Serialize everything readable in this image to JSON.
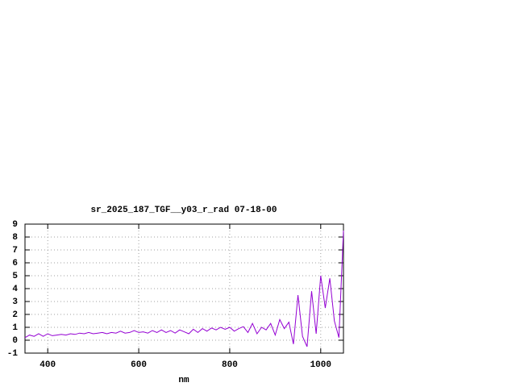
{
  "chart_data": {
    "type": "line",
    "title": "sr_2025_187_TGF__y03_r_rad 07-18-00",
    "x_label": "nm",
    "x": [
      350,
      360,
      370,
      380,
      390,
      400,
      410,
      420,
      430,
      440,
      450,
      460,
      470,
      480,
      490,
      500,
      510,
      520,
      530,
      540,
      550,
      560,
      570,
      580,
      590,
      600,
      610,
      620,
      630,
      640,
      650,
      660,
      670,
      680,
      690,
      700,
      710,
      720,
      730,
      740,
      750,
      760,
      770,
      780,
      790,
      800,
      810,
      820,
      830,
      840,
      850,
      860,
      870,
      880,
      890,
      900,
      910,
      920,
      930,
      940,
      950,
      960,
      970,
      980,
      990,
      1000,
      1010,
      1020,
      1030,
      1040,
      1050
    ],
    "series": [
      {
        "color": "#9400d3",
        "values": [
          0.2,
          0.4,
          0.3,
          0.5,
          0.3,
          0.5,
          0.35,
          0.4,
          0.45,
          0.4,
          0.5,
          0.45,
          0.55,
          0.5,
          0.6,
          0.5,
          0.55,
          0.6,
          0.5,
          0.6,
          0.55,
          0.7,
          0.55,
          0.6,
          0.75,
          0.6,
          0.65,
          0.55,
          0.75,
          0.6,
          0.8,
          0.6,
          0.75,
          0.55,
          0.8,
          0.65,
          0.5,
          0.85,
          0.6,
          0.9,
          0.7,
          0.95,
          0.8,
          1.0,
          0.85,
          1.0,
          0.7,
          0.9,
          1.05,
          0.6,
          1.3,
          0.5,
          1.0,
          0.8,
          1.3,
          0.4,
          1.6,
          0.9,
          1.4,
          -0.3,
          3.5,
          0.3,
          -0.5,
          3.8,
          0.5,
          5.0,
          2.5,
          4.8,
          1.5,
          0.2,
          8.5
        ]
      }
    ],
    "xlim": [
      350,
      1050
    ],
    "xticks": [
      400,
      600,
      800,
      1000
    ],
    "ylim": [
      -1,
      9
    ],
    "yticks": [
      -1,
      0,
      1,
      2,
      3,
      4,
      5,
      6,
      7,
      8,
      9
    ],
    "grid": true
  }
}
